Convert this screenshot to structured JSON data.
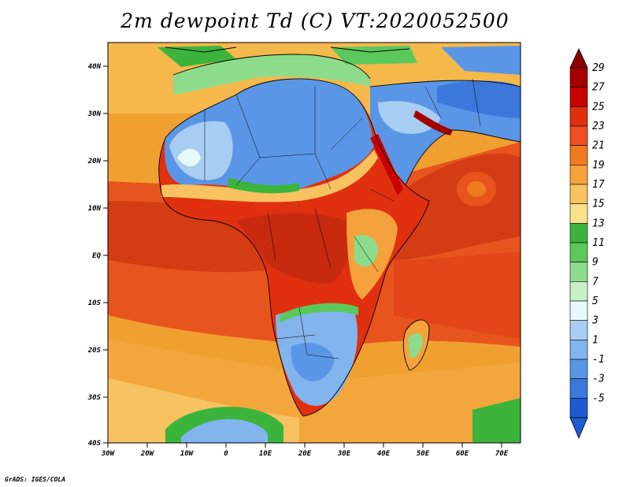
{
  "title": "2m dewpoint Td (C) VT:2020052500",
  "credit": "GrADS: IGES/COLA",
  "map": {
    "lat_labels": [
      "40N",
      "30N",
      "20N",
      "10N",
      "EQ",
      "10S",
      "20S",
      "30S",
      "40S"
    ],
    "lon_labels": [
      "30W",
      "20W",
      "10W",
      "0",
      "10E",
      "20E",
      "30E",
      "40E",
      "50E",
      "60E",
      "70E"
    ]
  },
  "colorbar": {
    "labels": [
      "29",
      "27",
      "25",
      "23",
      "21",
      "19",
      "17",
      "15",
      "13",
      "11",
      "9",
      "7",
      "5",
      "3",
      "1",
      "-1",
      "-3",
      "-5"
    ],
    "colors": [
      "#a50000",
      "#c80000",
      "#e0300f",
      "#ee5020",
      "#f07a1e",
      "#f5a23c",
      "#f8c260",
      "#fbe28a",
      "#3cb43c",
      "#5cc85c",
      "#8cdc8c",
      "#c8f0c8",
      "#e6fafa",
      "#a8cdf2",
      "#82b4ee",
      "#5a96e6",
      "#3c78dc",
      "#1e5ad2"
    ],
    "top_arrow_color": "#8c0000",
    "bottom_arrow_color": "#1e5ad2"
  }
}
